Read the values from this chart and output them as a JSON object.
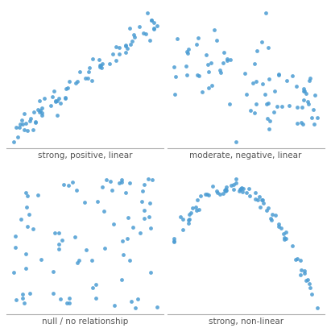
{
  "dot_color": "#4B9CD3",
  "dot_size": 12,
  "dot_alpha": 0.85,
  "labels": [
    "strong, positive, linear",
    "moderate, negative, linear",
    "null / no relationship",
    "strong, non-linear"
  ],
  "label_fontsize": 7.5,
  "background_color": "#ffffff",
  "seed": 42,
  "n_points": 80,
  "figsize": [
    4.11,
    4.12
  ],
  "dpi": 100
}
